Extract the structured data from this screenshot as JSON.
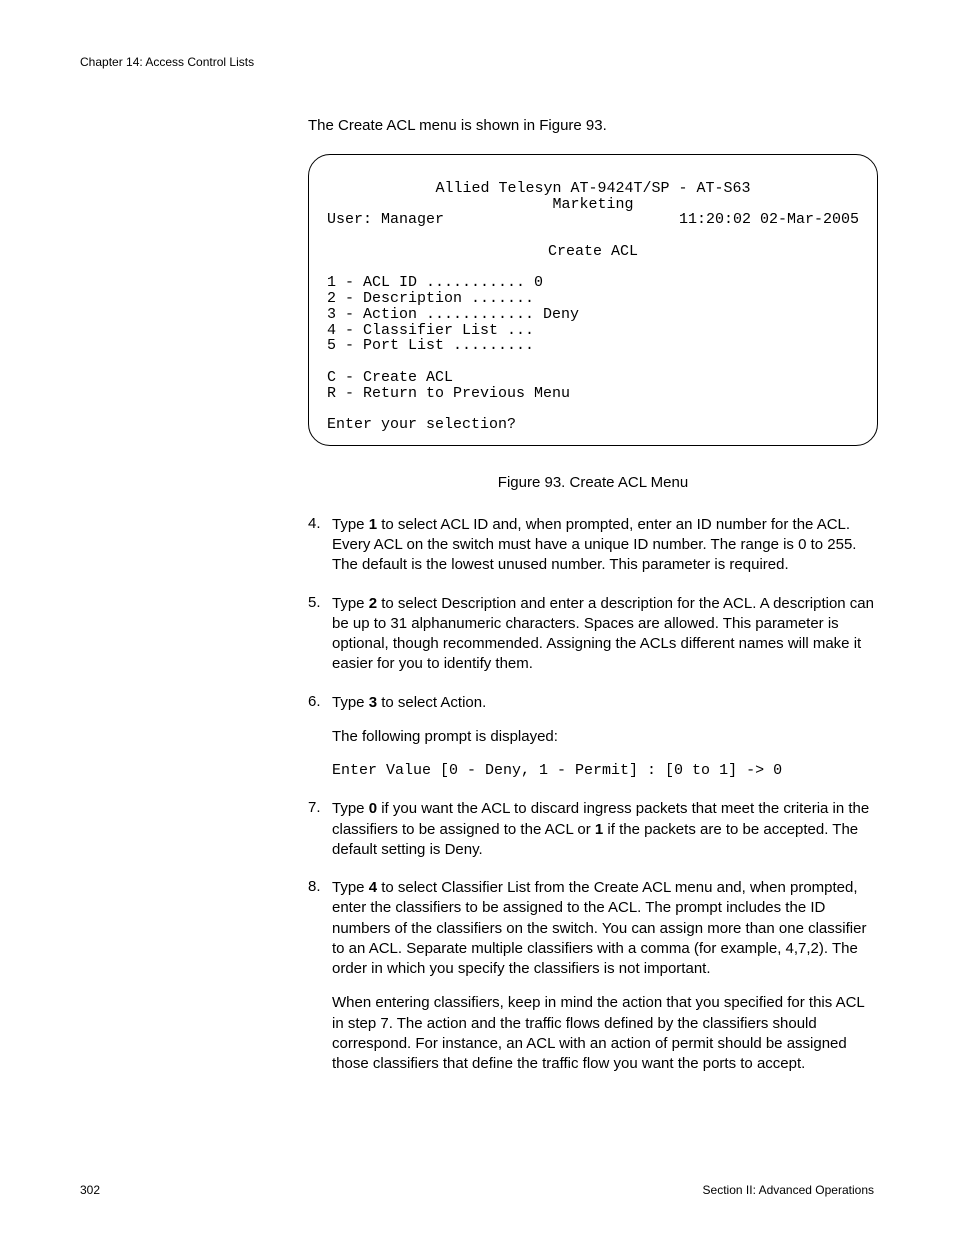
{
  "chapter_header": "Chapter 14: Access Control Lists",
  "intro": "The Create ACL menu is shown in Figure 93.",
  "menu": {
    "title1": "Allied Telesyn AT-9424T/SP - AT-S63",
    "title2": "Marketing",
    "user_label": "User: Manager",
    "timestamp": "11:20:02 02-Mar-2005",
    "screen_title": "Create ACL",
    "lines": [
      "1 - ACL ID ........... 0",
      "2 - Description .......",
      "3 - Action ............ Deny",
      "4 - Classifier List ...",
      "5 - Port List ........."
    ],
    "cmds": [
      "C - Create ACL",
      "R - Return to Previous Menu"
    ],
    "prompt": "Enter your selection?"
  },
  "figure_caption": "Figure 93. Create ACL Menu",
  "steps": {
    "s4": {
      "num": "4.",
      "pre": "Type ",
      "bold": "1",
      "post": " to select ACL ID and, when prompted, enter an ID number for the ACL. Every ACL on the switch must have a unique ID number. The range is 0 to 255. The default is the lowest unused number. This parameter is required."
    },
    "s5": {
      "num": "5.",
      "pre": "Type ",
      "bold": "2",
      "post": " to select Description and enter a description for the ACL. A description can be up to 31 alphanumeric characters. Spaces are allowed. This parameter is optional, though recommended. Assigning the ACLs different names will make it easier for you to identify them."
    },
    "s6": {
      "num": "6.",
      "pre": "Type ",
      "bold": "3",
      "post": " to select Action.",
      "p2": "The following prompt is displayed:",
      "code": "Enter Value [0 - Deny, 1 - Permit] : [0 to 1] -> 0"
    },
    "s7": {
      "num": "7.",
      "pre": "Type ",
      "bold": "0",
      "mid": " if you want the ACL to discard ingress packets that meet the criteria in the classifiers to be assigned to the ACL or ",
      "bold2": "1",
      "post": " if the packets are to be accepted. The default setting is Deny."
    },
    "s8": {
      "num": "8.",
      "pre": "Type ",
      "bold": "4",
      "post": " to select Classifier List from the Create ACL menu and, when prompted, enter the classifiers to be assigned to the ACL. The prompt includes the ID numbers of the classifiers on the switch. You can assign more than one classifier to an ACL. Separate multiple classifiers with a comma (for example, 4,7,2). The order in which you specify the classifiers is not important.",
      "p2": "When entering classifiers, keep in mind the action that you specified for this ACL in step 7. The action and the traffic flows defined by the classifiers should correspond. For instance, an ACL with an action of permit should be assigned those classifiers that define the traffic flow you want the ports to accept."
    }
  },
  "footer": {
    "page_num": "302",
    "section": "Section II: Advanced Operations"
  }
}
